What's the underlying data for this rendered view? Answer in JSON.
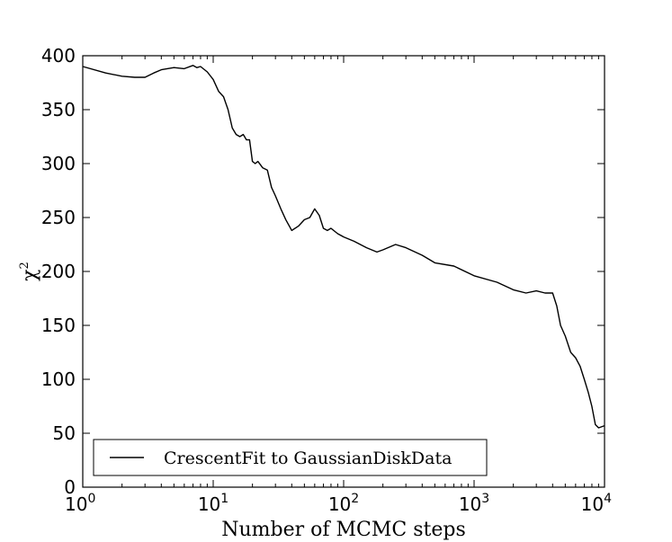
{
  "chart_data": {
    "type": "line",
    "xlabel": "Number of MCMC steps",
    "ylabel": "χ",
    "ylabel_superscript": "2",
    "xscale": "log",
    "xlim": [
      1,
      10000
    ],
    "ylim": [
      0,
      400
    ],
    "yticks": [
      0,
      50,
      100,
      150,
      200,
      250,
      300,
      350,
      400
    ],
    "ytick_labels": [
      "0",
      "50",
      "100",
      "150",
      "200",
      "250",
      "300",
      "350",
      "400"
    ],
    "xticks": [
      1,
      10,
      100,
      1000,
      10000
    ],
    "xtick_labels": [
      {
        "base": "10",
        "exp": "0"
      },
      {
        "base": "10",
        "exp": "1"
      },
      {
        "base": "10",
        "exp": "2"
      },
      {
        "base": "10",
        "exp": "3"
      },
      {
        "base": "10",
        "exp": "4"
      }
    ],
    "legend_position": "lower-left",
    "series": [
      {
        "name": "CrescentFit to GaussianDiskData",
        "color": "#000000",
        "x": [
          1,
          1.5,
          2,
          2.5,
          3,
          3.5,
          4,
          5,
          6,
          7,
          7.5,
          8,
          9,
          10,
          11,
          12,
          13,
          14,
          15,
          16,
          17,
          18,
          19,
          20,
          21,
          22,
          24,
          26,
          28,
          30,
          33,
          36,
          40,
          45,
          50,
          55,
          60,
          65,
          70,
          75,
          80,
          90,
          100,
          120,
          150,
          180,
          200,
          250,
          300,
          400,
          500,
          700,
          1000,
          1500,
          2000,
          2500,
          3000,
          3500,
          4000,
          4300,
          4600,
          5000,
          5500,
          6000,
          6500,
          7000,
          7500,
          8000,
          8500,
          9000,
          10000
        ],
        "y": [
          390,
          384,
          381,
          380,
          380,
          384,
          387,
          389,
          388,
          391,
          389,
          390,
          385,
          378,
          367,
          362,
          350,
          333,
          327,
          325,
          327,
          322,
          322,
          302,
          300,
          302,
          296,
          294,
          278,
          270,
          258,
          248,
          238,
          242,
          248,
          250,
          258,
          252,
          240,
          238,
          240,
          235,
          232,
          228,
          222,
          218,
          220,
          225,
          222,
          215,
          208,
          205,
          196,
          190,
          183,
          180,
          182,
          180,
          180,
          168,
          150,
          140,
          125,
          120,
          112,
          100,
          88,
          75,
          58,
          55,
          57
        ]
      }
    ]
  }
}
